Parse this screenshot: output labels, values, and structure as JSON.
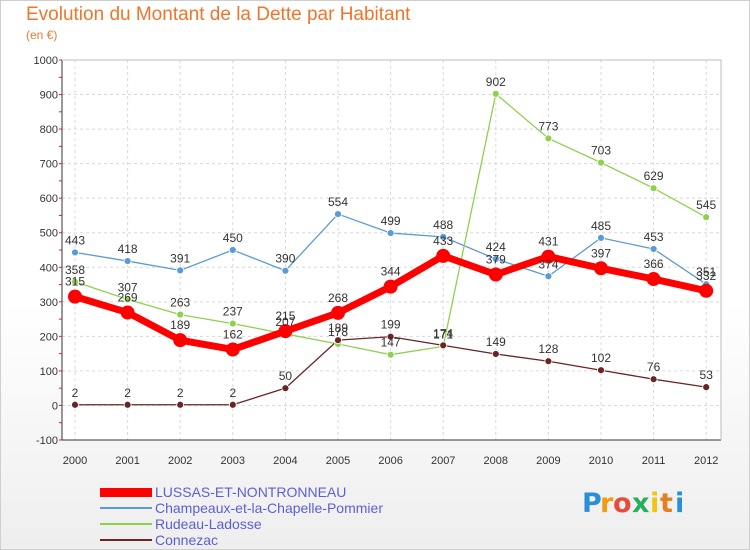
{
  "chart_data": {
    "type": "line",
    "title": "Evolution du Montant de la Dette par Habitant",
    "subtitle": "(en €)",
    "categories": [
      "2000",
      "2001",
      "2002",
      "2003",
      "2004",
      "2005",
      "2006",
      "2007",
      "2008",
      "2009",
      "2010",
      "2011",
      "2012"
    ],
    "y_ticks": [
      "1000",
      "900",
      "800",
      "700",
      "600",
      "500",
      "400",
      "300",
      "200",
      "100",
      "0",
      "-100"
    ],
    "ylim": [
      -100,
      1000
    ],
    "grid": "horizontal",
    "legend_position": "bottom-left",
    "series": [
      {
        "name": "LUSSAS-ET-NONTRONNEAU",
        "color": "#ff0000",
        "values": [
          315,
          269,
          189,
          162,
          215,
          268,
          344,
          433,
          379,
          431,
          397,
          366,
          332
        ],
        "labels": [
          "315",
          "269",
          "189",
          "162",
          "215",
          "268",
          "344",
          "433",
          "379",
          "431",
          "397",
          "366",
          "332"
        ]
      },
      {
        "name": "Champeaux-et-la-Chapelle-Pommier",
        "color": "#5b9bd5",
        "values": [
          443,
          418,
          391,
          450,
          390,
          554,
          499,
          488,
          424,
          374,
          485,
          453,
          351
        ],
        "labels": [
          "443",
          "418",
          "391",
          "450",
          "390",
          "554",
          "499",
          "488",
          "424",
          "374",
          "485",
          "453",
          "351"
        ]
      },
      {
        "name": "Rudeau-Ladosse",
        "color": "#8fd14f",
        "values": [
          358,
          307,
          263,
          237,
          207,
          178,
          147,
          171,
          902,
          773,
          703,
          629,
          545
        ],
        "labels": [
          "358",
          "307",
          "263",
          "237",
          "207",
          "178",
          "147",
          "171",
          "902",
          "773",
          "703",
          "629",
          "545"
        ]
      },
      {
        "name": "Connezac",
        "color": "#6b2424",
        "values": [
          2,
          2,
          2,
          2,
          50,
          189,
          199,
          174,
          149,
          128,
          102,
          76,
          53
        ],
        "labels": [
          "2",
          "2",
          "2",
          "2",
          "50",
          "189",
          "199",
          "174",
          "149",
          "128",
          "102",
          "76",
          "53"
        ]
      }
    ]
  },
  "logo": {
    "text": "Proxiti",
    "letters": [
      "P",
      "r",
      "o",
      "x",
      "i",
      "t",
      "i"
    ]
  }
}
